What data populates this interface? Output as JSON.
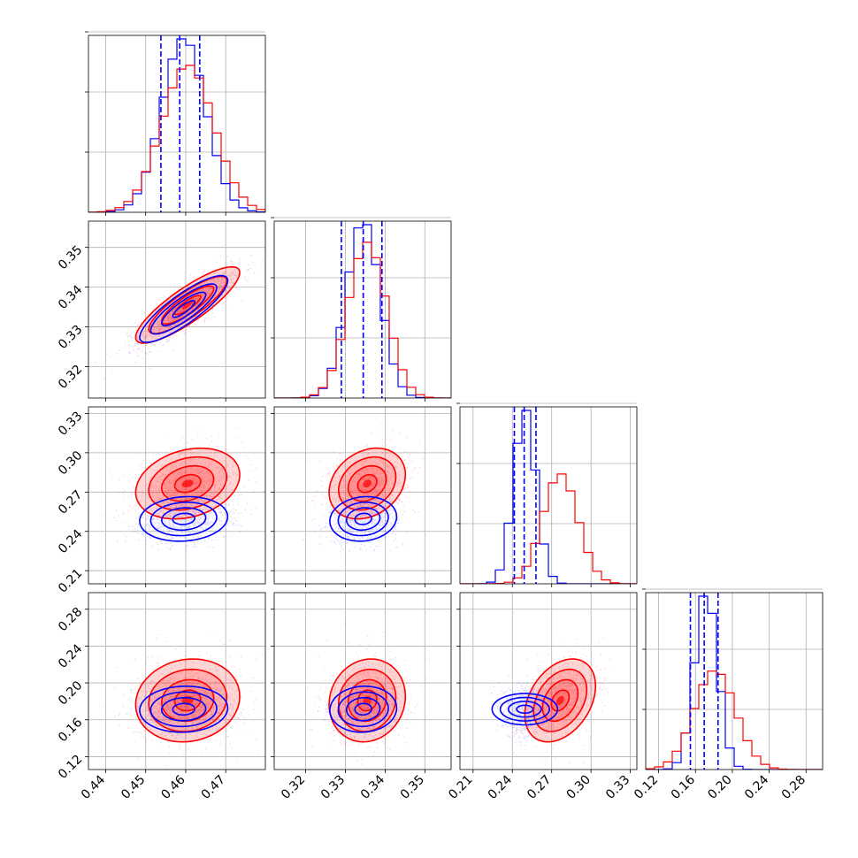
{
  "chart_data": {
    "type": "corner",
    "title": "",
    "series": [
      {
        "name": "",
        "color": "#0000ff",
        "mean": [
          0.4595,
          0.3345,
          0.2495,
          0.1715
        ],
        "sd": [
          0.0055,
          0.0042,
          0.0085,
          0.0125
        ],
        "corr": [
          [
            1.0,
            0.85,
            0.1,
            0.05
          ],
          [
            0.85,
            1.0,
            0.1,
            0.05
          ],
          [
            0.1,
            0.1,
            1.0,
            0.0
          ],
          [
            0.05,
            0.05,
            0.0,
            1.0
          ]
        ]
      },
      {
        "name": "",
        "color": "#ff0000",
        "mean": [
          0.4605,
          0.3355,
          0.2765,
          0.181
        ],
        "sd": [
          0.0065,
          0.0048,
          0.0135,
          0.0225
        ],
        "corr": [
          [
            1.0,
            0.85,
            0.25,
            0.1
          ],
          [
            0.85,
            1.0,
            0.25,
            0.1
          ],
          [
            0.25,
            0.25,
            1.0,
            0.35
          ],
          [
            0.1,
            0.1,
            0.35,
            1.0
          ]
        ]
      }
    ],
    "quantile_lines": {
      "color": "#0000ff",
      "values": [
        [
          0.4538,
          0.4585,
          0.4635
        ],
        [
          0.329,
          0.3345,
          0.3392
        ],
        [
          0.2415,
          0.249,
          0.258
        ],
        [
          0.1545,
          0.1695,
          0.1845
        ]
      ]
    },
    "axes": [
      {
        "range": [
          0.4357,
          0.4799
        ],
        "ticks": [
          0.44,
          0.45,
          0.46,
          0.47
        ],
        "tick_labels": [
          "0.44",
          "0.45",
          "0.46",
          "0.47"
        ]
      },
      {
        "range": [
          0.3121,
          0.3566
        ],
        "ticks": [
          0.32,
          0.33,
          0.34,
          0.35
        ],
        "tick_labels": [
          "0.32",
          "0.33",
          "0.34",
          "0.35"
        ]
      },
      {
        "range": [
          0.2,
          0.335
        ],
        "ticks": [
          0.21,
          0.24,
          0.27,
          0.3,
          0.33
        ],
        "tick_labels": [
          "0.21",
          "0.24",
          "0.27",
          "0.30",
          "0.33"
        ]
      },
      {
        "range": [
          0.106,
          0.298
        ],
        "ticks": [
          0.12,
          0.16,
          0.2,
          0.24,
          0.28
        ],
        "tick_labels": [
          "0.12",
          "0.16",
          "0.20",
          "0.24",
          "0.28"
        ]
      }
    ],
    "xlabels": [
      "",
      "",
      "",
      ""
    ],
    "ylabels": [
      "",
      "",
      "",
      ""
    ],
    "grid": true,
    "legend": "none"
  }
}
